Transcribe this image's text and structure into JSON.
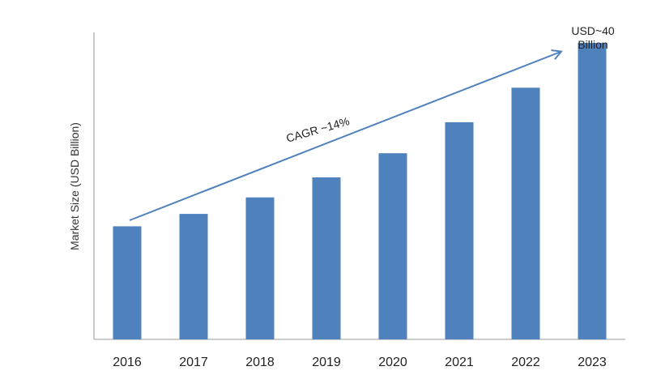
{
  "chart_data": {
    "type": "bar",
    "categories": [
      "2016",
      "2017",
      "2018",
      "2019",
      "2020",
      "2021",
      "2022",
      "2023"
    ],
    "values": [
      16.4,
      18.2,
      20.6,
      23.5,
      27.0,
      31.5,
      36.5,
      43.0
    ],
    "ylabel": "Market Size (USD Billion)",
    "xlabel": "",
    "ylim": [
      0,
      45
    ],
    "grid": false,
    "bar_color": "#4f81bd",
    "annotations": {
      "cagr": "CAGR ~14%",
      "end_value_line1": "USD~40",
      "end_value_line2": "Billion"
    },
    "arrow_color": "#4f81bd"
  }
}
